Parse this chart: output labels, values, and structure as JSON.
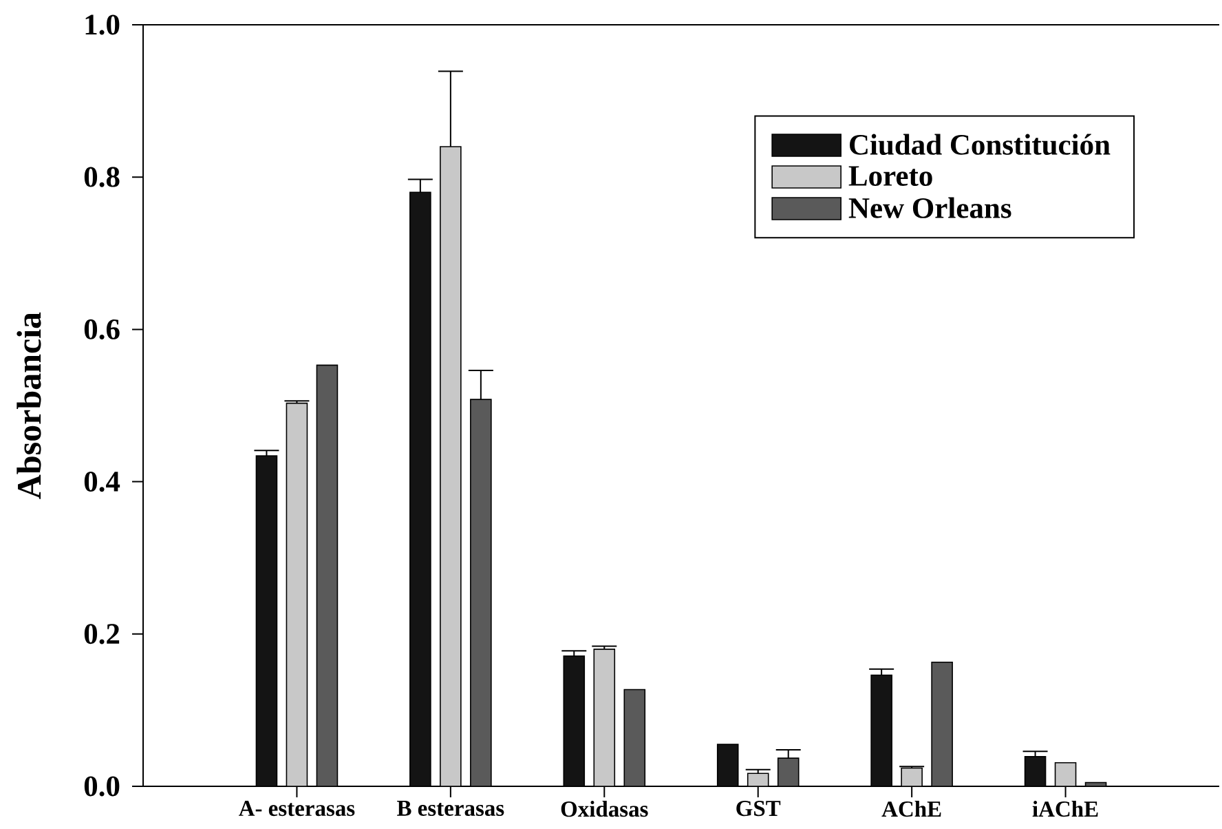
{
  "chart_data": {
    "type": "bar",
    "ylabel": "Absorbancia",
    "categories": [
      "A- esterasas",
      "B esterasas",
      "Oxidasas",
      "GST",
      "AChE",
      "iAChE"
    ],
    "series": [
      {
        "name": "Ciudad Constitución",
        "color": "#141414",
        "values": [
          0.434,
          0.78,
          0.171,
          0.055,
          0.146,
          0.039
        ],
        "errors": [
          [
            0.434,
            0.441
          ],
          [
            0.78,
            0.797
          ],
          [
            0.171,
            0.178
          ],
          null,
          [
            0.146,
            0.154
          ],
          [
            0.039,
            0.046
          ]
        ]
      },
      {
        "name": "Loreto",
        "color": "#c8c8c8",
        "values": [
          0.503,
          0.84,
          0.18,
          0.017,
          0.024,
          0.031
        ],
        "errors": [
          [
            0.503,
            0.506
          ],
          [
            0.84,
            0.939
          ],
          [
            0.18,
            0.184
          ],
          [
            0.017,
            0.022
          ],
          [
            0.024,
            0.026
          ],
          null
        ]
      },
      {
        "name": "New Orleans",
        "color": "#5a5a5a",
        "values": [
          0.553,
          0.508,
          0.127,
          0.037,
          0.163,
          0.005
        ],
        "errors": [
          null,
          [
            0.508,
            0.546
          ],
          null,
          [
            0.037,
            0.048
          ],
          null,
          null
        ]
      }
    ],
    "ylim": [
      0,
      1
    ],
    "yticks": [
      {
        "value": 0,
        "label": "0.0"
      },
      0.2,
      0.4,
      0.6,
      0.8,
      {
        "value": 1,
        "label": "1.0"
      }
    ],
    "legend": "top right"
  }
}
